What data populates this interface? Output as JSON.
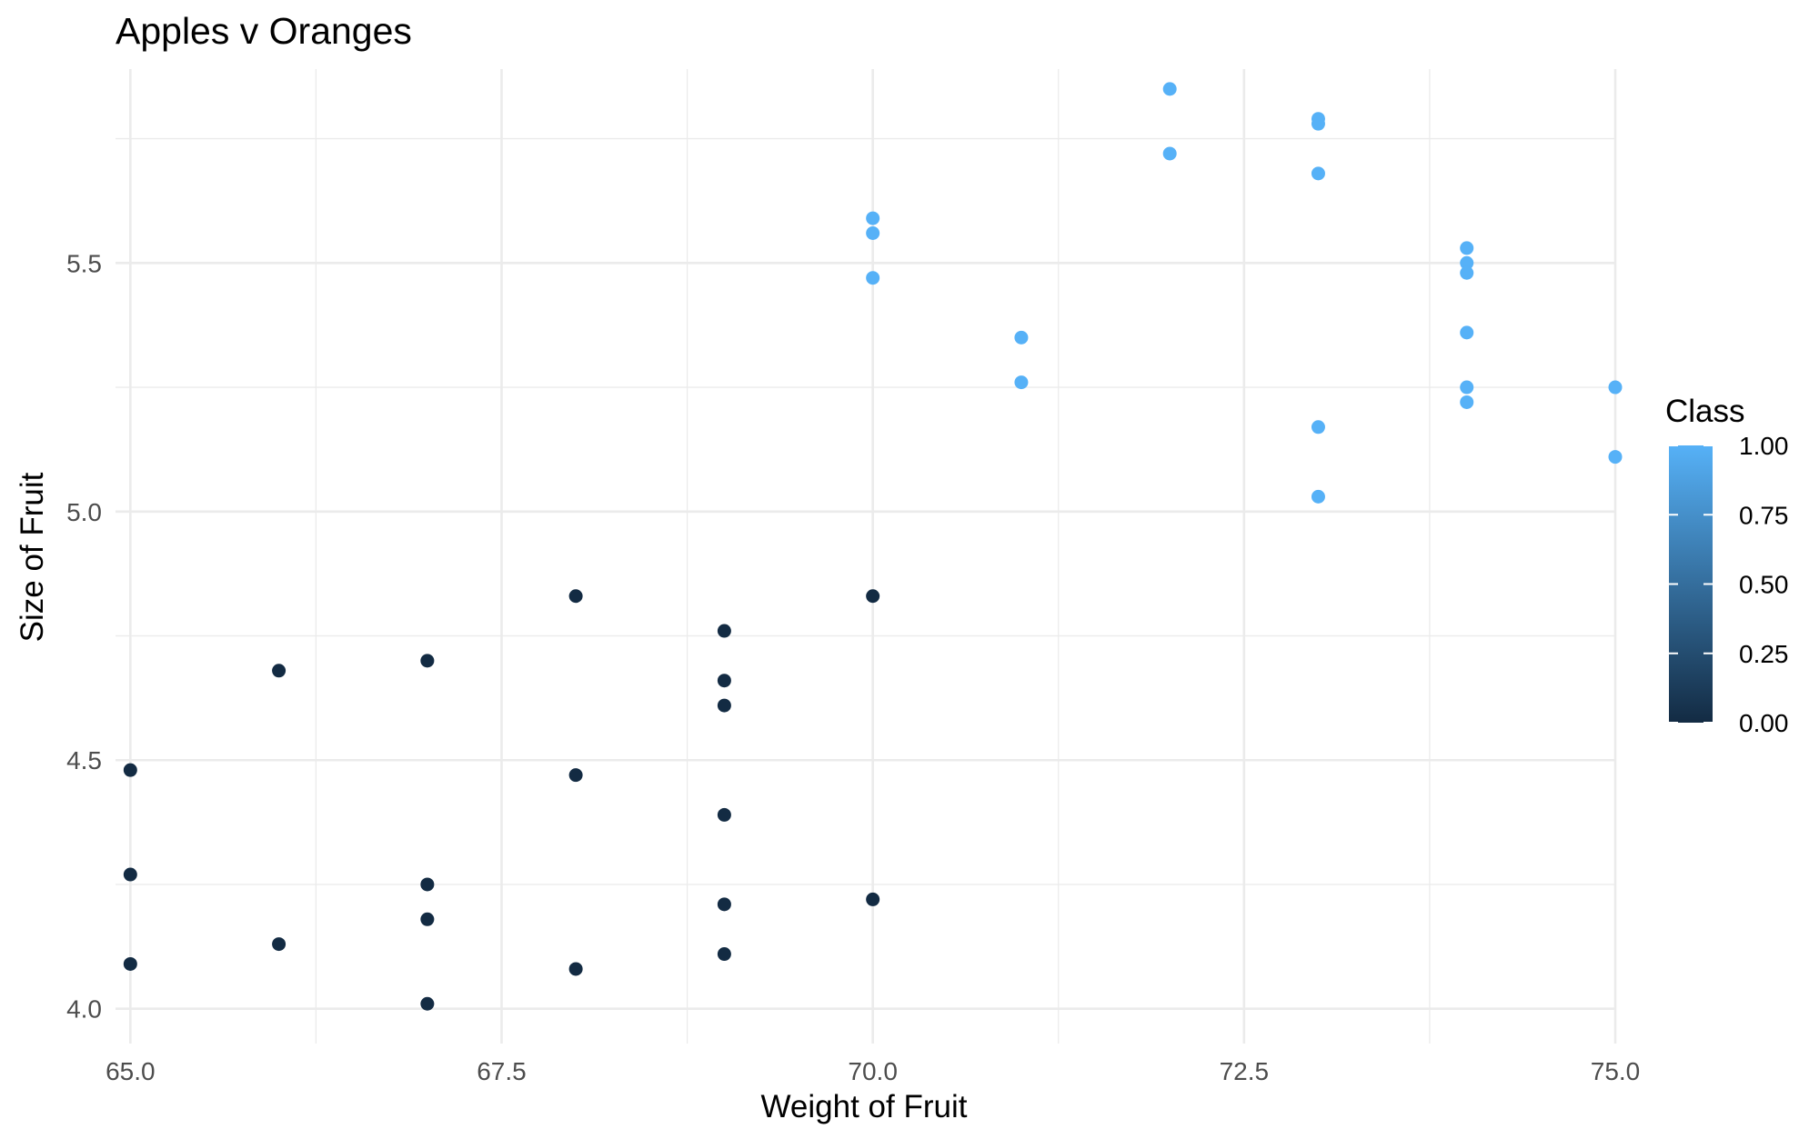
{
  "chart_data": {
    "type": "scatter",
    "title": "Apples v Oranges",
    "xlabel": "Weight of Fruit",
    "ylabel": "Size of Fruit",
    "xlim": [
      64.9,
      75.0
    ],
    "ylim": [
      3.93,
      5.89
    ],
    "x_ticks": [
      65.0,
      67.5,
      70.0,
      72.5,
      75.0
    ],
    "x_tick_labels": [
      "65.0",
      "67.5",
      "70.0",
      "72.5",
      "75.0"
    ],
    "y_ticks": [
      4.0,
      4.5,
      5.0,
      5.5
    ],
    "y_tick_labels": [
      "4.0",
      "4.5",
      "5.0",
      "5.5"
    ],
    "grid": true,
    "legend": {
      "title": "Class",
      "placement": "right",
      "type": "continuous-colorbar",
      "range": [
        0,
        1
      ],
      "ticks": [
        0.0,
        0.25,
        0.5,
        0.75,
        1.0
      ],
      "tick_labels": [
        "0.00",
        "0.25",
        "0.50",
        "0.75",
        "1.00"
      ]
    },
    "colors": {
      "low": "#132b43",
      "high": "#56b1f7"
    },
    "points": [
      {
        "x": 65,
        "y": 4.48,
        "class": 0
      },
      {
        "x": 65,
        "y": 4.27,
        "class": 0
      },
      {
        "x": 65,
        "y": 4.09,
        "class": 0
      },
      {
        "x": 66,
        "y": 4.68,
        "class": 0
      },
      {
        "x": 66,
        "y": 4.13,
        "class": 0
      },
      {
        "x": 67,
        "y": 4.7,
        "class": 0
      },
      {
        "x": 67,
        "y": 4.25,
        "class": 0
      },
      {
        "x": 67,
        "y": 4.18,
        "class": 0
      },
      {
        "x": 67,
        "y": 4.01,
        "class": 0
      },
      {
        "x": 68,
        "y": 4.83,
        "class": 0
      },
      {
        "x": 68,
        "y": 4.47,
        "class": 0
      },
      {
        "x": 68,
        "y": 4.08,
        "class": 0
      },
      {
        "x": 69,
        "y": 4.76,
        "class": 0
      },
      {
        "x": 69,
        "y": 4.66,
        "class": 0
      },
      {
        "x": 69,
        "y": 4.61,
        "class": 0
      },
      {
        "x": 69,
        "y": 4.39,
        "class": 0
      },
      {
        "x": 69,
        "y": 4.21,
        "class": 0
      },
      {
        "x": 69,
        "y": 4.11,
        "class": 0
      },
      {
        "x": 70,
        "y": 4.83,
        "class": 0
      },
      {
        "x": 70,
        "y": 4.22,
        "class": 0
      },
      {
        "x": 70,
        "y": 5.59,
        "class": 1
      },
      {
        "x": 70,
        "y": 5.56,
        "class": 1
      },
      {
        "x": 70,
        "y": 5.47,
        "class": 1
      },
      {
        "x": 71,
        "y": 5.35,
        "class": 1
      },
      {
        "x": 71,
        "y": 5.26,
        "class": 1
      },
      {
        "x": 72,
        "y": 5.85,
        "class": 1
      },
      {
        "x": 72,
        "y": 5.72,
        "class": 1
      },
      {
        "x": 73,
        "y": 5.79,
        "class": 1
      },
      {
        "x": 73,
        "y": 5.78,
        "class": 1
      },
      {
        "x": 73,
        "y": 5.68,
        "class": 1
      },
      {
        "x": 73,
        "y": 5.17,
        "class": 1
      },
      {
        "x": 73,
        "y": 5.03,
        "class": 1
      },
      {
        "x": 74,
        "y": 5.53,
        "class": 1
      },
      {
        "x": 74,
        "y": 5.5,
        "class": 1
      },
      {
        "x": 74,
        "y": 5.48,
        "class": 1
      },
      {
        "x": 74,
        "y": 5.36,
        "class": 1
      },
      {
        "x": 74,
        "y": 5.25,
        "class": 1
      },
      {
        "x": 74,
        "y": 5.22,
        "class": 1
      },
      {
        "x": 75,
        "y": 5.25,
        "class": 1
      },
      {
        "x": 75,
        "y": 5.11,
        "class": 1
      }
    ]
  }
}
